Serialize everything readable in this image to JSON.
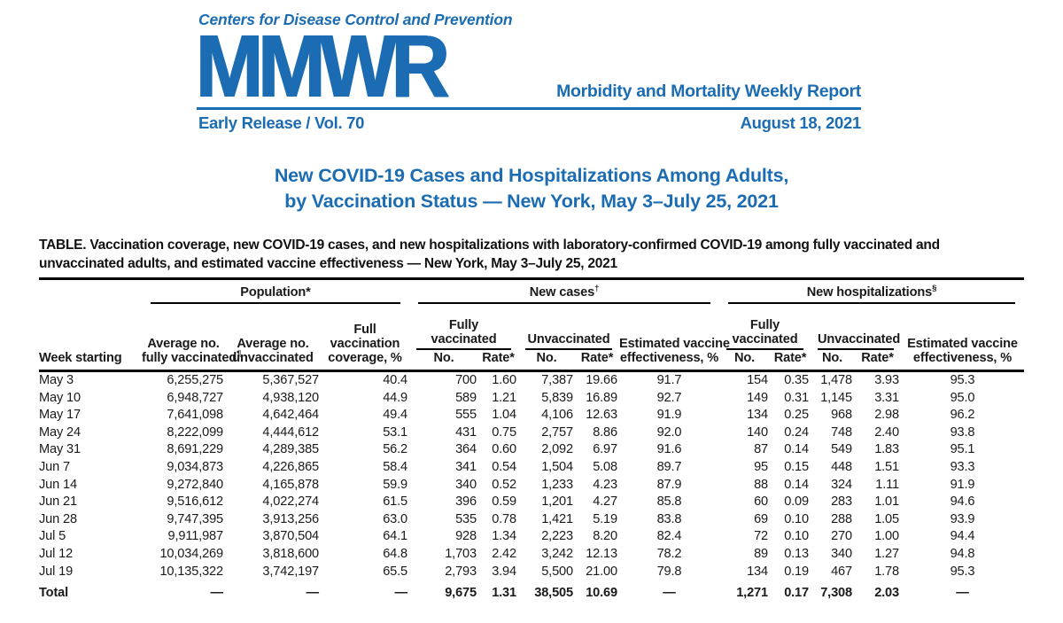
{
  "brand": {
    "blue": "#1b6cb2"
  },
  "masthead": {
    "agency": "Centers for Disease Control and Prevention",
    "logo": "MMWR",
    "journal": "Morbidity and Mortality Weekly Report",
    "edition": "Early Release / Vol. 70",
    "date": "August 18, 2021"
  },
  "title": {
    "line1": "New COVID-19 Cases and Hospitalizations Among Adults,",
    "line2": "by Vaccination Status — New York, May 3–July 25, 2021"
  },
  "table": {
    "caption_label": "TABLE.",
    "caption_text": "Vaccination coverage, new COVID-19 cases, and new hospitalizations with laboratory-confirmed COVID-19 among fully vaccinated and unvaccinated adults, and estimated vaccine effectiveness — New York, May 3–July 25, 2021",
    "col_week": "Week starting",
    "groups": {
      "population": "Population*",
      "new_cases": {
        "label": "New cases",
        "sup": "†"
      },
      "new_hospitalizations": {
        "label": "New hospitalizations",
        "sup": "§"
      }
    },
    "subgroups": {
      "fully_vaccinated": "Fully\nvaccinated",
      "unvaccinated": "Unvaccinated"
    },
    "cols": {
      "avg_fully_vaccinated": {
        "label": "Average no.\nfully vaccinated",
        "sup": "¶"
      },
      "avg_unvaccinated": "Average no.\nunvaccinated",
      "full_coverage": "Full\nvaccination\ncoverage, %",
      "no": "No.",
      "rate": "Rate*",
      "est_ve": "Estimated vaccine\neffectiveness, %"
    },
    "rows": [
      [
        "May 3",
        "6,255,275",
        "5,367,527",
        "40.4",
        "700",
        "1.60",
        "7,387",
        "19.66",
        "91.7",
        "154",
        "0.35",
        "1,478",
        "3.93",
        "95.3"
      ],
      [
        "May 10",
        "6,948,727",
        "4,938,120",
        "44.9",
        "589",
        "1.21",
        "5,839",
        "16.89",
        "92.7",
        "149",
        "0.31",
        "1,145",
        "3.31",
        "95.0"
      ],
      [
        "May 17",
        "7,641,098",
        "4,642,464",
        "49.4",
        "555",
        "1.04",
        "4,106",
        "12.63",
        "91.9",
        "134",
        "0.25",
        "968",
        "2.98",
        "96.2"
      ],
      [
        "May 24",
        "8,222,099",
        "4,444,612",
        "53.1",
        "431",
        "0.75",
        "2,757",
        "8.86",
        "92.0",
        "140",
        "0.24",
        "748",
        "2.40",
        "93.8"
      ],
      [
        "May 31",
        "8,691,229",
        "4,289,385",
        "56.2",
        "364",
        "0.60",
        "2,092",
        "6.97",
        "91.6",
        "87",
        "0.14",
        "549",
        "1.83",
        "95.1"
      ],
      [
        "Jun 7",
        "9,034,873",
        "4,226,865",
        "58.4",
        "341",
        "0.54",
        "1,504",
        "5.08",
        "89.7",
        "95",
        "0.15",
        "448",
        "1.51",
        "93.3"
      ],
      [
        "Jun 14",
        "9,272,840",
        "4,165,878",
        "59.9",
        "340",
        "0.52",
        "1,233",
        "4.23",
        "87.9",
        "88",
        "0.14",
        "324",
        "1.11",
        "91.9"
      ],
      [
        "Jun 21",
        "9,516,612",
        "4,022,274",
        "61.5",
        "396",
        "0.59",
        "1,201",
        "4.27",
        "85.8",
        "60",
        "0.09",
        "283",
        "1.01",
        "94.6"
      ],
      [
        "Jun 28",
        "9,747,395",
        "3,913,256",
        "63.0",
        "535",
        "0.78",
        "1,421",
        "5.19",
        "83.8",
        "69",
        "0.10",
        "288",
        "1.05",
        "93.9"
      ],
      [
        "Jul 5",
        "9,911,987",
        "3,870,504",
        "64.1",
        "928",
        "1.34",
        "2,223",
        "8.20",
        "82.4",
        "72",
        "0.10",
        "270",
        "1.00",
        "94.4"
      ],
      [
        "Jul 12",
        "10,034,269",
        "3,818,600",
        "64.8",
        "1,703",
        "2.42",
        "3,242",
        "12.13",
        "78.2",
        "89",
        "0.13",
        "340",
        "1.27",
        "94.8"
      ],
      [
        "Jul 19",
        "10,135,322",
        "3,742,197",
        "65.5",
        "2,793",
        "3.94",
        "5,500",
        "21.00",
        "79.8",
        "134",
        "0.19",
        "467",
        "1.78",
        "95.3"
      ]
    ],
    "total_rows": [
      [
        "Total",
        "—",
        "—",
        "—",
        "9,675",
        "1.31",
        "38,505",
        "10.69",
        "—",
        "1,271",
        "0.17",
        "7,308",
        "2.03",
        "—"
      ]
    ]
  }
}
